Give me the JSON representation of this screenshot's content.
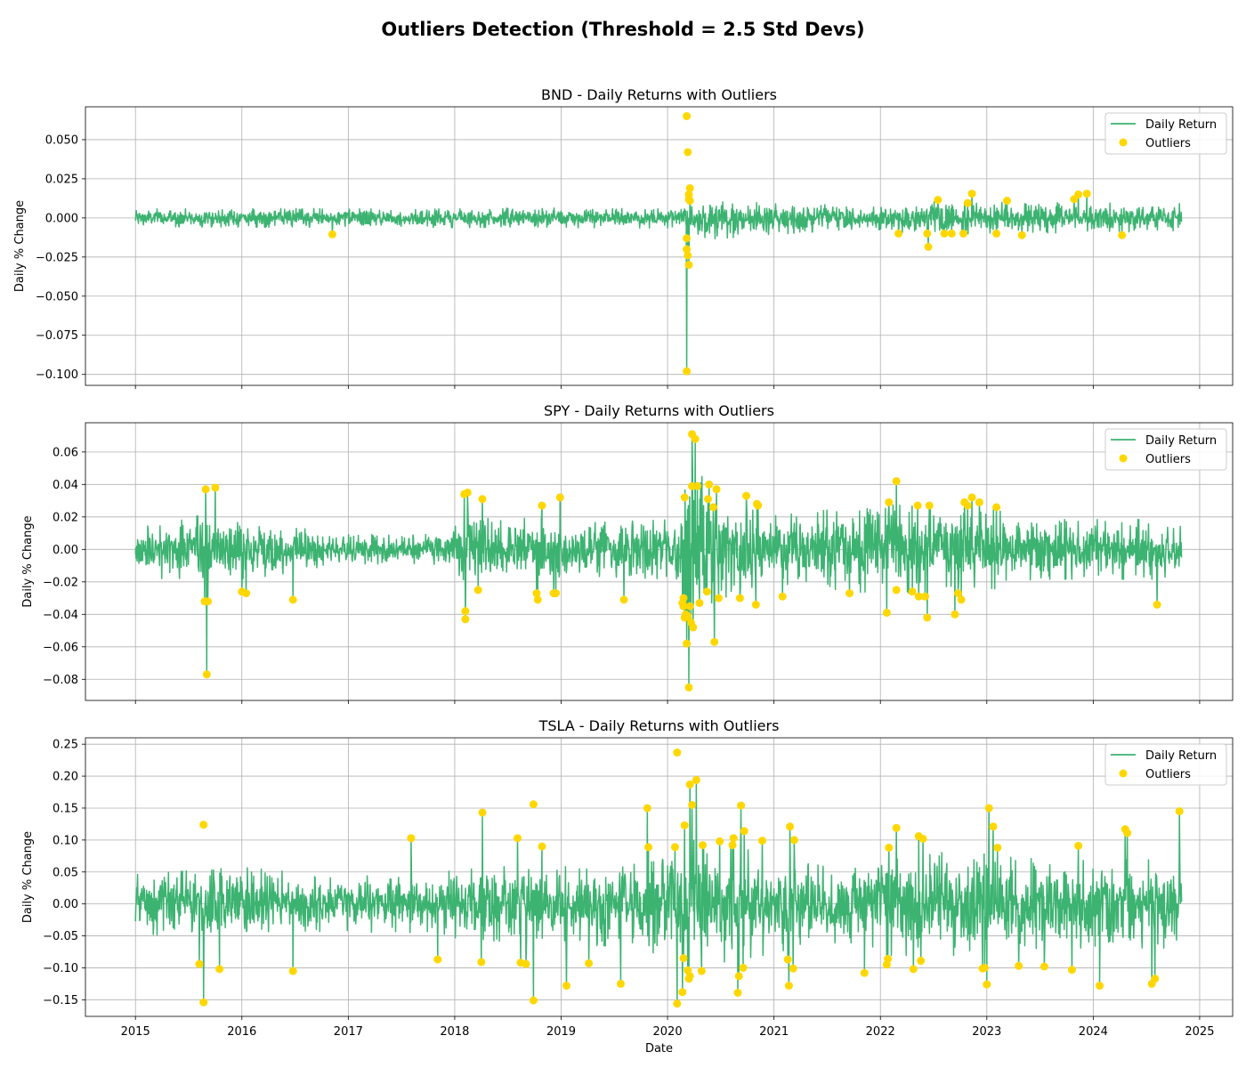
{
  "figure": {
    "suptitle": "Outliers Detection (Threshold = 2.5 Std Devs)"
  },
  "colors": {
    "line": "#3cb371",
    "outlier": "#ffd700",
    "grid": "#b0b0b0",
    "axes": "#000000"
  },
  "chart_data": [
    {
      "type": "line",
      "title": "BND - Daily Returns with Outliers",
      "ylabel": "Daily % Change",
      "xlabel": "",
      "xlim": [
        2014.53,
        2025.31
      ],
      "ylim": [
        -0.107,
        0.071
      ],
      "yticks": [
        0.05,
        0.025,
        0.0,
        -0.025,
        -0.05,
        -0.075,
        -0.1
      ],
      "ytick_labels": [
        "0.050",
        "0.025",
        "0.000",
        "−0.025",
        "−0.050",
        "−0.075",
        "−0.100"
      ],
      "xticks": [
        2015,
        2016,
        2017,
        2018,
        2019,
        2020,
        2021,
        2022,
        2023,
        2024,
        2025
      ],
      "xtick_labels": [],
      "grid": true,
      "legend": {
        "position": "top-right",
        "entries": [
          "Daily Return",
          "Outliers"
        ]
      },
      "series": [
        {
          "name": "Daily Return",
          "kind": "line",
          "x_start": 2015.0,
          "x_end": 2024.83,
          "noise_profile": [
            [
              2015.0,
              0.0025
            ],
            [
              2020.1,
              0.0028
            ],
            [
              2020.35,
              0.006
            ],
            [
              2021.9,
              0.0028
            ],
            [
              2022.2,
              0.0045
            ],
            [
              2024.83,
              0.004
            ]
          ]
        },
        {
          "name": "Outliers",
          "kind": "scatter",
          "points": [
            [
              2016.85,
              -0.0105
            ],
            [
              2020.18,
              0.065
            ],
            [
              2020.19,
              0.042
            ],
            [
              2020.2,
              0.015
            ],
            [
              2020.21,
              0.019
            ],
            [
              2020.2,
              0.012
            ],
            [
              2020.21,
              0.011
            ],
            [
              2020.18,
              -0.013
            ],
            [
              2020.18,
              -0.02
            ],
            [
              2020.19,
              -0.024
            ],
            [
              2020.2,
              -0.03
            ],
            [
              2020.18,
              -0.098
            ],
            [
              2022.17,
              -0.01
            ],
            [
              2022.44,
              -0.01
            ],
            [
              2022.45,
              -0.0185
            ],
            [
              2022.54,
              0.0115
            ],
            [
              2022.6,
              -0.01
            ],
            [
              2022.67,
              -0.01
            ],
            [
              2022.78,
              -0.01
            ],
            [
              2022.82,
              0.0095
            ],
            [
              2022.86,
              0.0155
            ],
            [
              2023.09,
              -0.01
            ],
            [
              2023.19,
              0.011
            ],
            [
              2023.33,
              -0.011
            ],
            [
              2023.82,
              0.012
            ],
            [
              2023.86,
              0.015
            ],
            [
              2023.94,
              0.0155
            ],
            [
              2024.27,
              -0.011
            ]
          ]
        }
      ]
    },
    {
      "type": "line",
      "title": "SPY - Daily Returns with Outliers",
      "ylabel": "Daily % Change",
      "xlabel": "",
      "xlim": [
        2014.53,
        2025.31
      ],
      "ylim": [
        -0.093,
        0.078
      ],
      "yticks": [
        0.06,
        0.04,
        0.02,
        0.0,
        -0.02,
        -0.04,
        -0.06,
        -0.08
      ],
      "ytick_labels": [
        "0.06",
        "0.04",
        "0.02",
        "0.00",
        "−0.02",
        "−0.04",
        "−0.06",
        "−0.08"
      ],
      "xticks": [
        2015,
        2016,
        2017,
        2018,
        2019,
        2020,
        2021,
        2022,
        2023,
        2024,
        2025
      ],
      "xtick_labels": [],
      "grid": true,
      "legend": {
        "position": "top-right",
        "entries": [
          "Daily Return",
          "Outliers"
        ]
      },
      "series": [
        {
          "name": "Daily Return",
          "kind": "line",
          "x_start": 2015.0,
          "x_end": 2024.83,
          "noise_profile": [
            [
              2015.0,
              0.007
            ],
            [
              2015.6,
              0.009
            ],
            [
              2016.3,
              0.007
            ],
            [
              2016.9,
              0.004
            ],
            [
              2017.9,
              0.004
            ],
            [
              2018.1,
              0.01
            ],
            [
              2019.1,
              0.007
            ],
            [
              2020.1,
              0.008
            ],
            [
              2020.2,
              0.025
            ],
            [
              2020.6,
              0.012
            ],
            [
              2021.0,
              0.009
            ],
            [
              2022.0,
              0.012
            ],
            [
              2023.0,
              0.011
            ],
            [
              2023.5,
              0.008
            ],
            [
              2024.83,
              0.008
            ]
          ]
        },
        {
          "name": "Outliers",
          "kind": "scatter",
          "points": [
            [
              2015.65,
              -0.032
            ],
            [
              2015.66,
              0.037
            ],
            [
              2015.67,
              -0.077
            ],
            [
              2015.68,
              -0.032
            ],
            [
              2015.75,
              0.038
            ],
            [
              2016.0,
              -0.026
            ],
            [
              2016.04,
              -0.027
            ],
            [
              2016.48,
              -0.031
            ],
            [
              2018.09,
              0.034
            ],
            [
              2018.1,
              -0.038
            ],
            [
              2018.1,
              -0.043
            ],
            [
              2018.12,
              0.035
            ],
            [
              2018.22,
              -0.025
            ],
            [
              2018.26,
              0.031
            ],
            [
              2018.77,
              -0.027
            ],
            [
              2018.78,
              -0.031
            ],
            [
              2018.82,
              0.027
            ],
            [
              2018.93,
              -0.027
            ],
            [
              2018.95,
              -0.027
            ],
            [
              2018.99,
              0.032
            ],
            [
              2019.59,
              -0.031
            ],
            [
              2020.14,
              -0.033
            ],
            [
              2020.15,
              -0.03
            ],
            [
              2020.16,
              0.032
            ],
            [
              2020.15,
              -0.035
            ],
            [
              2020.16,
              -0.042
            ],
            [
              2020.17,
              -0.04
            ],
            [
              2020.18,
              -0.058
            ],
            [
              2020.19,
              -0.041
            ],
            [
              2020.2,
              -0.085
            ],
            [
              2020.21,
              -0.035
            ],
            [
              2020.22,
              -0.045
            ],
            [
              2020.23,
              0.039
            ],
            [
              2020.23,
              0.071
            ],
            [
              2020.24,
              -0.048
            ],
            [
              2020.26,
              0.068
            ],
            [
              2020.28,
              0.039
            ],
            [
              2020.3,
              -0.033
            ],
            [
              2020.37,
              -0.026
            ],
            [
              2020.38,
              0.031
            ],
            [
              2020.39,
              0.04
            ],
            [
              2020.43,
              0.026
            ],
            [
              2020.44,
              -0.057
            ],
            [
              2020.46,
              0.037
            ],
            [
              2020.48,
              -0.03
            ],
            [
              2020.68,
              -0.03
            ],
            [
              2020.74,
              0.033
            ],
            [
              2020.83,
              -0.034
            ],
            [
              2020.84,
              0.028
            ],
            [
              2020.85,
              0.027
            ],
            [
              2021.08,
              -0.029
            ],
            [
              2021.71,
              -0.027
            ],
            [
              2022.06,
              -0.039
            ],
            [
              2022.08,
              0.029
            ],
            [
              2022.15,
              -0.025
            ],
            [
              2022.15,
              0.042
            ],
            [
              2022.3,
              -0.026
            ],
            [
              2022.35,
              0.027
            ],
            [
              2022.36,
              -0.029
            ],
            [
              2022.42,
              -0.029
            ],
            [
              2022.44,
              -0.042
            ],
            [
              2022.46,
              0.027
            ],
            [
              2022.7,
              -0.04
            ],
            [
              2022.73,
              -0.027
            ],
            [
              2022.76,
              -0.031
            ],
            [
              2022.79,
              0.029
            ],
            [
              2022.82,
              0.027
            ],
            [
              2022.86,
              0.032
            ],
            [
              2022.93,
              0.029
            ],
            [
              2023.09,
              0.026
            ],
            [
              2024.6,
              -0.034
            ]
          ]
        }
      ]
    },
    {
      "type": "line",
      "title": "TSLA - Daily Returns with Outliers",
      "ylabel": "Daily % Change",
      "xlabel": "Date",
      "xlim": [
        2014.53,
        2025.31
      ],
      "ylim": [
        -0.176,
        0.26
      ],
      "yticks": [
        0.25,
        0.2,
        0.15,
        0.1,
        0.05,
        0.0,
        -0.05,
        -0.1,
        -0.15
      ],
      "ytick_labels": [
        "0.25",
        "0.20",
        "0.15",
        "0.10",
        "0.05",
        "0.00",
        "−0.05",
        "−0.10",
        "−0.15"
      ],
      "xticks": [
        2015,
        2016,
        2017,
        2018,
        2019,
        2020,
        2021,
        2022,
        2023,
        2024,
        2025
      ],
      "xtick_labels": [
        "2015",
        "2016",
        "2017",
        "2018",
        "2019",
        "2020",
        "2021",
        "2022",
        "2023",
        "2024",
        "2025"
      ],
      "grid": true,
      "legend": {
        "position": "top-right",
        "entries": [
          "Daily Return",
          "Outliers"
        ]
      },
      "series": [
        {
          "name": "Daily Return",
          "kind": "line",
          "x_start": 2015.0,
          "x_end": 2024.83,
          "noise_profile": [
            [
              2015.0,
              0.02
            ],
            [
              2016.0,
              0.025
            ],
            [
              2017.0,
              0.018
            ],
            [
              2018.0,
              0.024
            ],
            [
              2019.0,
              0.027
            ],
            [
              2019.8,
              0.03
            ],
            [
              2020.1,
              0.045
            ],
            [
              2020.9,
              0.035
            ],
            [
              2021.5,
              0.025
            ],
            [
              2022.0,
              0.035
            ],
            [
              2023.0,
              0.035
            ],
            [
              2023.5,
              0.03
            ],
            [
              2024.83,
              0.03
            ]
          ]
        },
        {
          "name": "Outliers",
          "kind": "scatter",
          "points": [
            [
              2015.6,
              -0.094
            ],
            [
              2015.64,
              0.124
            ],
            [
              2015.64,
              -0.154
            ],
            [
              2015.79,
              -0.102
            ],
            [
              2016.48,
              -0.105
            ],
            [
              2017.59,
              0.103
            ],
            [
              2017.84,
              -0.087
            ],
            [
              2018.25,
              -0.091
            ],
            [
              2018.26,
              0.143
            ],
            [
              2018.59,
              0.103
            ],
            [
              2018.62,
              -0.092
            ],
            [
              2018.67,
              -0.094
            ],
            [
              2018.74,
              0.156
            ],
            [
              2018.74,
              -0.151
            ],
            [
              2018.82,
              0.09
            ],
            [
              2019.05,
              -0.128
            ],
            [
              2019.26,
              -0.093
            ],
            [
              2019.56,
              -0.125
            ],
            [
              2019.81,
              0.15
            ],
            [
              2019.82,
              0.089
            ],
            [
              2020.07,
              0.089
            ],
            [
              2020.09,
              0.237
            ],
            [
              2020.09,
              -0.156
            ],
            [
              2020.14,
              -0.138
            ],
            [
              2020.15,
              -0.085
            ],
            [
              2020.16,
              0.123
            ],
            [
              2020.19,
              -0.104
            ],
            [
              2020.2,
              -0.117
            ],
            [
              2020.21,
              -0.113
            ],
            [
              2020.21,
              0.187
            ],
            [
              2020.23,
              0.155
            ],
            [
              2020.27,
              0.194
            ],
            [
              2020.32,
              -0.105
            ],
            [
              2020.33,
              0.092
            ],
            [
              2020.49,
              0.098
            ],
            [
              2020.61,
              0.092
            ],
            [
              2020.62,
              0.103
            ],
            [
              2020.66,
              -0.139
            ],
            [
              2020.67,
              -0.113
            ],
            [
              2020.69,
              0.154
            ],
            [
              2020.71,
              -0.1
            ],
            [
              2020.72,
              0.114
            ],
            [
              2020.89,
              0.099
            ],
            [
              2021.13,
              -0.087
            ],
            [
              2021.14,
              -0.128
            ],
            [
              2021.15,
              0.121
            ],
            [
              2021.18,
              -0.101
            ],
            [
              2021.19,
              0.1
            ],
            [
              2021.85,
              -0.108
            ],
            [
              2022.06,
              -0.095
            ],
            [
              2022.07,
              -0.086
            ],
            [
              2022.08,
              0.088
            ],
            [
              2022.15,
              0.119
            ],
            [
              2022.31,
              -0.102
            ],
            [
              2022.36,
              0.106
            ],
            [
              2022.38,
              -0.089
            ],
            [
              2022.4,
              0.102
            ],
            [
              2022.96,
              -0.101
            ],
            [
              2022.98,
              -0.1
            ],
            [
              2023.0,
              -0.126
            ],
            [
              2023.02,
              0.15
            ],
            [
              2023.06,
              0.121
            ],
            [
              2023.1,
              0.088
            ],
            [
              2023.3,
              -0.097
            ],
            [
              2023.54,
              -0.098
            ],
            [
              2023.8,
              -0.103
            ],
            [
              2023.86,
              0.091
            ],
            [
              2024.06,
              -0.128
            ],
            [
              2024.3,
              0.117
            ],
            [
              2024.32,
              0.111
            ],
            [
              2024.55,
              -0.125
            ],
            [
              2024.58,
              -0.117
            ],
            [
              2024.81,
              0.145
            ]
          ]
        }
      ]
    }
  ]
}
